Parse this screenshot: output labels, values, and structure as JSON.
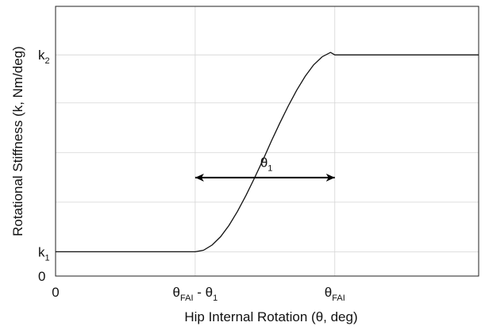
{
  "chart_data": {
    "type": "line",
    "xlabel": "Hip Internal Rotation (θ, deg)",
    "ylabel": "Rotational Stiffness (k, Nm/deg)",
    "xlim": [
      0,
      100
    ],
    "ylim": [
      0,
      100
    ],
    "grid": true,
    "x_ticks": [
      {
        "x": 0,
        "parts": [
          {
            "t": "0"
          }
        ]
      },
      {
        "x": 33,
        "parts": [
          {
            "t": "θ"
          },
          {
            "t": "FAI",
            "sub": true
          },
          {
            "t": " - θ"
          },
          {
            "t": "1",
            "sub": true
          }
        ]
      },
      {
        "x": 66,
        "parts": [
          {
            "t": "θ"
          },
          {
            "t": "FAI",
            "sub": true
          }
        ]
      }
    ],
    "y_ticks": [
      {
        "y": 0,
        "parts": [
          {
            "t": "0"
          }
        ]
      },
      {
        "y": 9,
        "parts": [
          {
            "t": "k"
          },
          {
            "t": "1",
            "sub": true
          }
        ]
      },
      {
        "y": 82,
        "parts": [
          {
            "t": "k"
          },
          {
            "t": "2",
            "sub": true
          }
        ]
      }
    ],
    "grid_y": [
      9,
      27.4,
      45.8,
      64.2,
      82
    ],
    "grid_x": [
      33,
      66
    ],
    "series": [
      {
        "color": "#111111",
        "points": [
          [
            0,
            9
          ],
          [
            33,
            9
          ],
          [
            35,
            9.6
          ],
          [
            37,
            11.5
          ],
          [
            39,
            14.6
          ],
          [
            41,
            18.8
          ],
          [
            43,
            24.0
          ],
          [
            45,
            29.9
          ],
          [
            47,
            36.3
          ],
          [
            49,
            43.0
          ],
          [
            51,
            50.0
          ],
          [
            53,
            56.7
          ],
          [
            55,
            63.1
          ],
          [
            57,
            68.9
          ],
          [
            59,
            74.1
          ],
          [
            61,
            78.3
          ],
          [
            63,
            81.3
          ],
          [
            65,
            82.9
          ],
          [
            66,
            82
          ],
          [
            100,
            82
          ]
        ]
      }
    ],
    "annotation": {
      "arrow_from": [
        33,
        36.5
      ],
      "arrow_to": [
        66,
        36.5
      ],
      "label_parts": [
        {
          "t": "θ"
        },
        {
          "t": "1",
          "sub": true
        }
      ],
      "label_at": [
        49.5,
        40.5
      ]
    }
  }
}
